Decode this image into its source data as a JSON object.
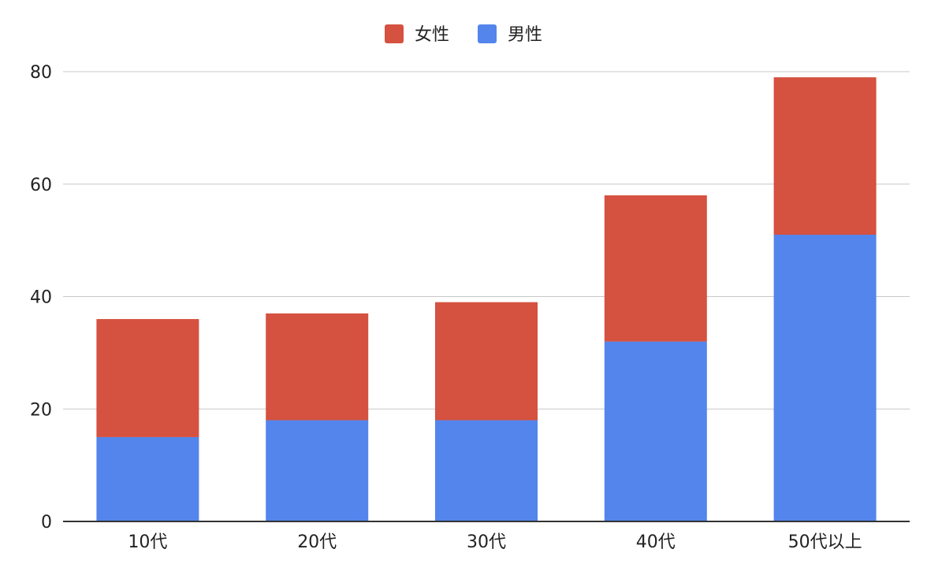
{
  "chart_data": {
    "type": "bar",
    "stacked": true,
    "categories": [
      "10代",
      "20代",
      "30代",
      "40代",
      "50代以上"
    ],
    "series": [
      {
        "name": "男性",
        "color": "#5385EC",
        "values": [
          15,
          18,
          18,
          32,
          51
        ]
      },
      {
        "name": "女性",
        "color": "#D55140",
        "values": [
          21,
          19,
          21,
          26,
          28
        ]
      }
    ],
    "legend": {
      "position": "top-center",
      "order": [
        "女性",
        "男性"
      ]
    },
    "ylim": [
      0,
      80
    ],
    "yticks": [
      "0",
      "20",
      "40",
      "60",
      "80"
    ],
    "grid": true,
    "title": "",
    "xlabel": "",
    "ylabel": ""
  }
}
